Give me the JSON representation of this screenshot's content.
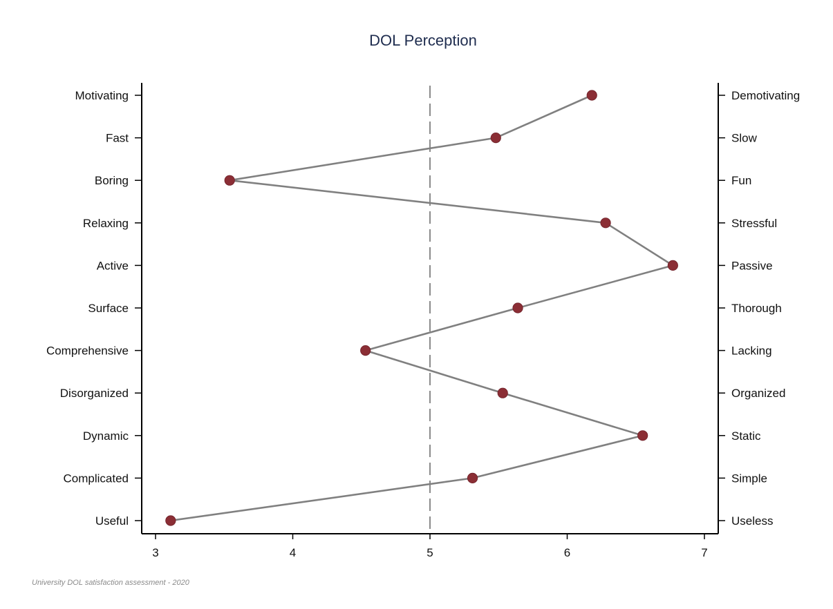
{
  "chart_data": {
    "type": "line",
    "title": "DOL Perception",
    "note": "University DOL satisfaction assessment - 2020",
    "xlim": [
      3,
      7
    ],
    "xticks": [
      3,
      4,
      5,
      6,
      7
    ],
    "reference_line": {
      "x": 5,
      "style": "dashed"
    },
    "grid": false,
    "colors": {
      "line": "#808080",
      "marker": "#8b2e35",
      "reference": "#8a8a8a",
      "axis": "#000000",
      "title": "#1f2d4f"
    },
    "items": [
      {
        "left": "Motivating",
        "right": "Demotivating",
        "value": 6.18
      },
      {
        "left": "Fast",
        "right": "Slow",
        "value": 5.48
      },
      {
        "left": "Boring",
        "right": "Fun",
        "value": 3.54
      },
      {
        "left": "Relaxing",
        "right": "Stressful",
        "value": 6.28
      },
      {
        "left": "Active",
        "right": "Passive",
        "value": 6.77
      },
      {
        "left": "Surface",
        "right": "Thorough",
        "value": 5.64
      },
      {
        "left": "Comprehensive",
        "right": "Lacking",
        "value": 4.53
      },
      {
        "left": "Disorganized",
        "right": "Organized",
        "value": 5.53
      },
      {
        "left": "Dynamic",
        "right": "Static",
        "value": 6.55
      },
      {
        "left": "Complicated",
        "right": "Simple",
        "value": 5.31
      },
      {
        "left": "Useful",
        "right": "Useless",
        "value": 3.11
      }
    ]
  }
}
